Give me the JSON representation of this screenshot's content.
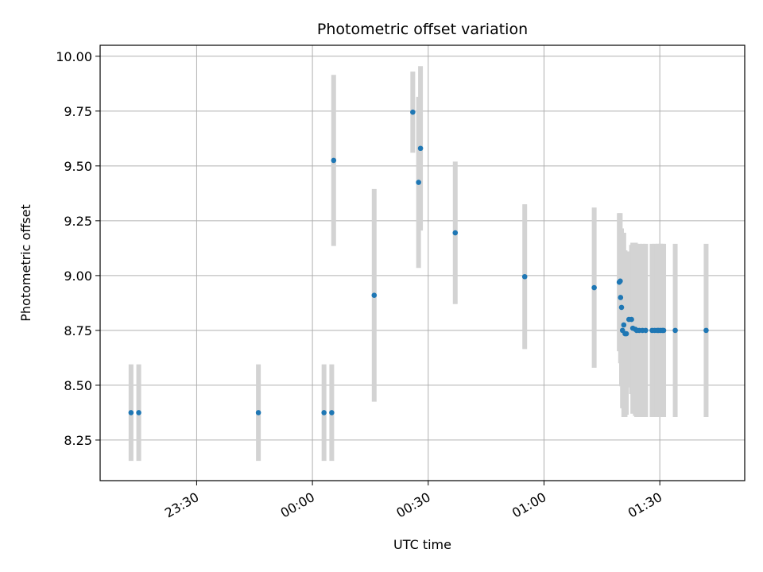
{
  "chart_data": {
    "type": "scatter",
    "title": "Photometric offset variation",
    "xlabel": "UTC time",
    "ylabel": "Photometric offset",
    "xlim": [
      "23:05",
      "01:52"
    ],
    "ylim": [
      8.065,
      10.05
    ],
    "x_ticks": [
      "23:30",
      "00:00",
      "00:30",
      "01:00",
      "01:30"
    ],
    "y_ticks": [
      "8.25",
      "8.50",
      "8.75",
      "9.00",
      "9.25",
      "9.50",
      "9.75",
      "10.00"
    ],
    "grid": true,
    "colors": {
      "point": "#1f77b4",
      "errorbar": "#d3d3d3",
      "grid": "#b0b0b0"
    },
    "points": [
      {
        "x": "23:13",
        "y": 8.375,
        "err": 0.22
      },
      {
        "x": "23:15",
        "y": 8.375,
        "err": 0.22
      },
      {
        "x": "23:46",
        "y": 8.375,
        "err": 0.22
      },
      {
        "x": "00:03",
        "y": 8.375,
        "err": 0.22
      },
      {
        "x": "00:05",
        "y": 8.375,
        "err": 0.22
      },
      {
        "x": "00:05:30",
        "y": 9.525,
        "err": 0.39
      },
      {
        "x": "00:16",
        "y": 8.91,
        "err": 0.485
      },
      {
        "x": "00:26",
        "y": 9.745,
        "err": 0.185
      },
      {
        "x": "00:27:30",
        "y": 9.425,
        "err": 0.39
      },
      {
        "x": "00:28",
        "y": 9.58,
        "err": 0.375
      },
      {
        "x": "00:37",
        "y": 9.195,
        "err": 0.325
      },
      {
        "x": "00:55",
        "y": 8.995,
        "err": 0.33
      },
      {
        "x": "01:13",
        "y": 8.945,
        "err": 0.365
      },
      {
        "x": "01:19:30",
        "y": 8.97,
        "err": 0.315
      },
      {
        "x": "01:19:45",
        "y": 8.975,
        "err": 0.31
      },
      {
        "x": "01:19:50",
        "y": 8.9,
        "err": 0.3
      },
      {
        "x": "01:20:05",
        "y": 8.855,
        "err": 0.36
      },
      {
        "x": "01:20:20",
        "y": 8.75,
        "err": 0.355
      },
      {
        "x": "01:20:40",
        "y": 8.775,
        "err": 0.42
      },
      {
        "x": "01:21",
        "y": 8.735,
        "err": 0.38
      },
      {
        "x": "01:21:20",
        "y": 8.735,
        "err": 0.37
      },
      {
        "x": "01:22",
        "y": 8.8,
        "err": 0.31
      },
      {
        "x": "01:22:40",
        "y": 8.8,
        "err": 0.34
      },
      {
        "x": "01:23",
        "y": 8.76,
        "err": 0.39
      },
      {
        "x": "01:23:40",
        "y": 8.755,
        "err": 0.395
      },
      {
        "x": "01:24",
        "y": 8.75,
        "err": 0.395
      },
      {
        "x": "01:24:40",
        "y": 8.75,
        "err": 0.395
      },
      {
        "x": "01:25:30",
        "y": 8.75,
        "err": 0.395
      },
      {
        "x": "01:26:20",
        "y": 8.75,
        "err": 0.395
      },
      {
        "x": "01:28",
        "y": 8.75,
        "err": 0.395
      },
      {
        "x": "01:28:40",
        "y": 8.75,
        "err": 0.395
      },
      {
        "x": "01:29:20",
        "y": 8.75,
        "err": 0.395
      },
      {
        "x": "01:29:40",
        "y": 8.75,
        "err": 0.395
      },
      {
        "x": "01:30:10",
        "y": 8.75,
        "err": 0.395
      },
      {
        "x": "01:30:40",
        "y": 8.75,
        "err": 0.395
      },
      {
        "x": "01:31",
        "y": 8.75,
        "err": 0.395
      },
      {
        "x": "01:34",
        "y": 8.75,
        "err": 0.395
      },
      {
        "x": "01:42",
        "y": 8.75,
        "err": 0.395
      }
    ]
  }
}
